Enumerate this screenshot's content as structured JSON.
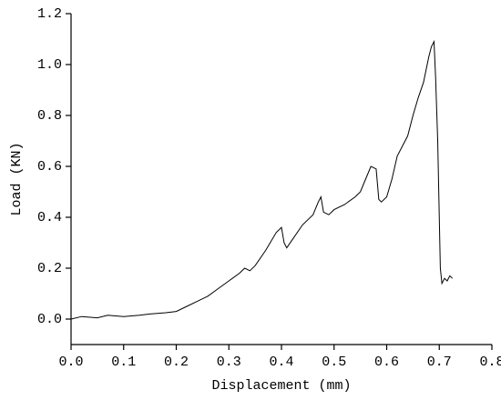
{
  "chart_data": {
    "type": "line",
    "x_label": "Displacement (mm)",
    "y_label": "Load (KN)",
    "xlim": [
      0,
      0.8
    ],
    "ylim": [
      -0.1,
      1.2
    ],
    "xticks": [
      {
        "value": 0,
        "label": "0.0"
      },
      0.1,
      0.2,
      0.3,
      0.4,
      0.5,
      0.6,
      0.7,
      0.8
    ],
    "yticks": [
      {
        "value": 0,
        "label": "0.0"
      },
      0.2,
      0.4,
      0.6,
      0.8,
      {
        "value": 1,
        "label": "1.0"
      },
      1.2
    ],
    "series": [
      {
        "color": "#000000",
        "x": [
          0,
          0.02,
          0.05,
          0.07,
          0.1,
          0.13,
          0.15,
          0.18,
          0.2,
          0.22,
          0.24,
          0.26,
          0.28,
          0.3,
          0.32,
          0.33,
          0.34,
          0.35,
          0.37,
          0.39,
          0.4,
          0.405,
          0.41,
          0.42,
          0.44,
          0.46,
          0.47,
          0.475,
          0.48,
          0.49,
          0.5,
          0.52,
          0.54,
          0.55,
          0.56,
          0.57,
          0.58,
          0.585,
          0.59,
          0.6,
          0.61,
          0.62,
          0.64,
          0.65,
          0.66,
          0.67,
          0.68,
          0.685,
          0.69,
          0.693,
          0.697,
          0.7,
          0.702,
          0.705,
          0.71,
          0.715,
          0.72,
          0.725
        ],
        "values": [
          0,
          0.01,
          0.005,
          0.015,
          0.01,
          0.015,
          0.02,
          0.025,
          0.03,
          0.05,
          0.07,
          0.09,
          0.12,
          0.15,
          0.18,
          0.2,
          0.19,
          0.21,
          0.27,
          0.34,
          0.36,
          0.3,
          0.28,
          0.31,
          0.37,
          0.41,
          0.46,
          0.48,
          0.42,
          0.41,
          0.43,
          0.45,
          0.48,
          0.5,
          0.55,
          0.6,
          0.59,
          0.47,
          0.46,
          0.48,
          0.55,
          0.64,
          0.72,
          0.8,
          0.87,
          0.93,
          1.03,
          1.07,
          1.09,
          0.95,
          0.7,
          0.4,
          0.2,
          0.14,
          0.16,
          0.15,
          0.17,
          0.16
        ]
      }
    ]
  }
}
